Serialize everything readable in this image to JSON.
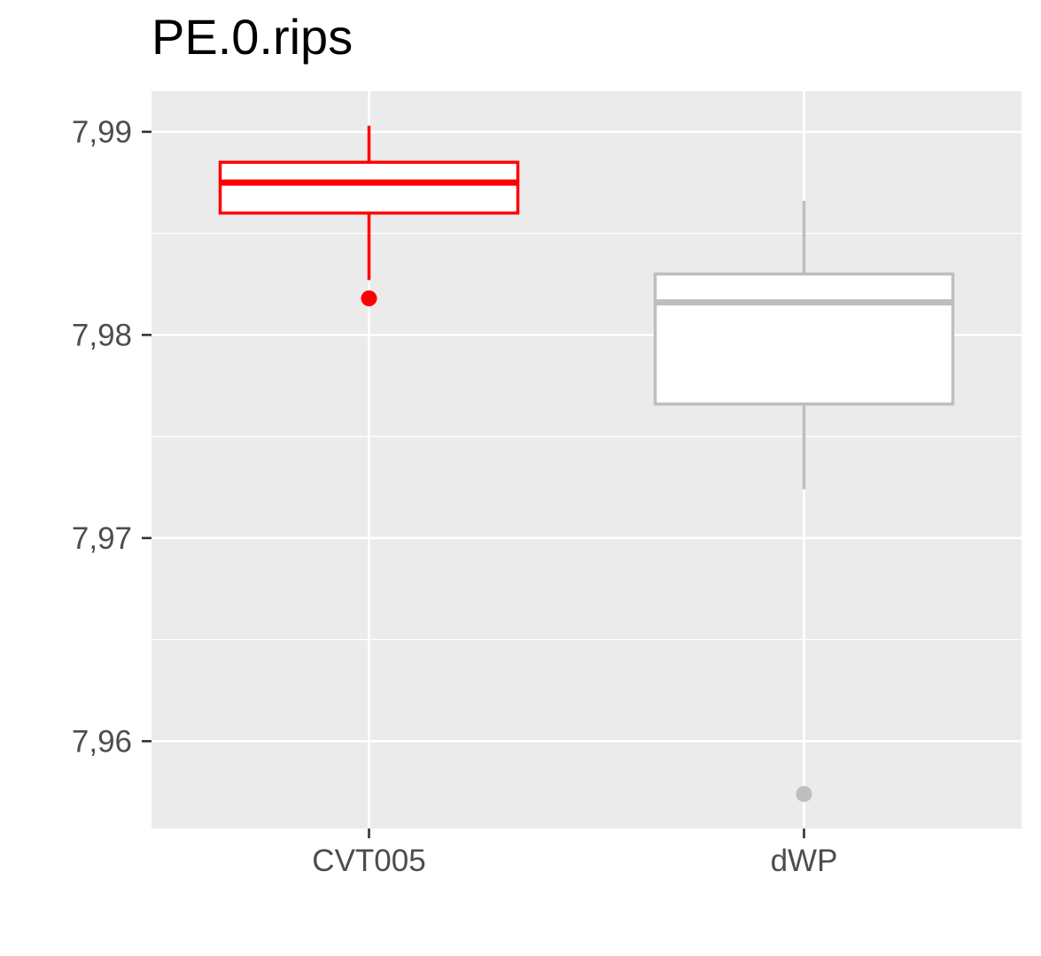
{
  "chart_data": {
    "type": "boxplot",
    "title": "PE.0.rips",
    "xlabel": "",
    "ylabel": "",
    "categories": [
      "CVT005",
      "dWP"
    ],
    "ylim": [
      7.9557,
      7.992
    ],
    "yticks": [
      {
        "value": 7.96,
        "label": "7,96"
      },
      {
        "value": 7.97,
        "label": "7,97"
      },
      {
        "value": 7.98,
        "label": "7,98"
      },
      {
        "value": 7.99,
        "label": "7,99"
      }
    ],
    "grid": true,
    "legend": "none",
    "panel_background": "#EBEBEB",
    "grid_color": "#FFFFFF",
    "series": [
      {
        "category": "CVT005",
        "color": "#FF0000",
        "whisker_low": 7.9827,
        "q1": 7.986,
        "median": 7.9875,
        "q3": 7.9885,
        "whisker_high": 7.9903,
        "outliers": [
          7.9818
        ]
      },
      {
        "category": "dWP",
        "color": "#BEBEBE",
        "whisker_low": 7.9724,
        "q1": 7.9766,
        "median": 7.9816,
        "q3": 7.983,
        "whisker_high": 7.9866,
        "outliers": [
          7.9574
        ]
      }
    ]
  }
}
